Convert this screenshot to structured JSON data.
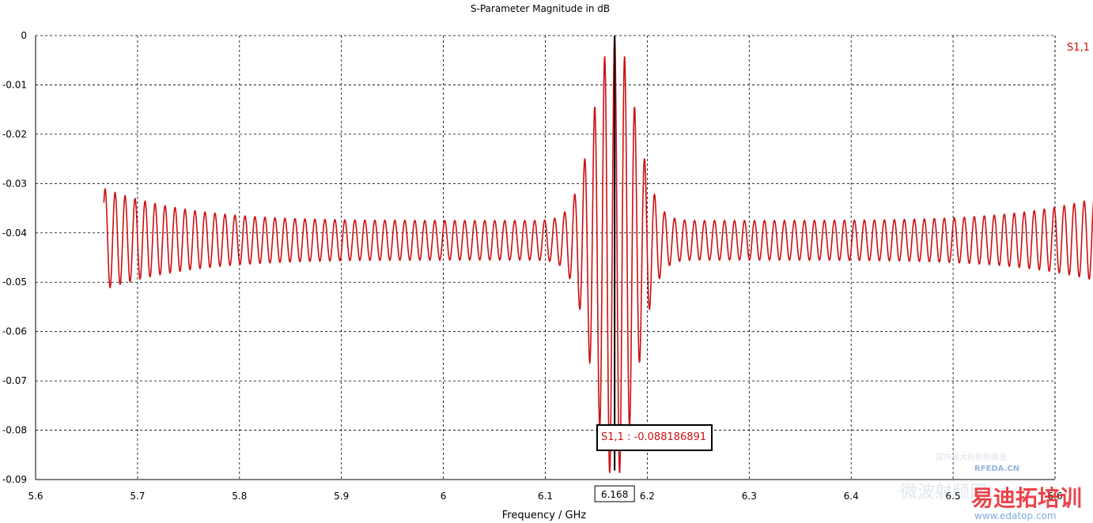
{
  "chart_data": {
    "type": "line",
    "title": "S-Parameter Magnitude in dB",
    "xlabel": "Frequency / GHz",
    "ylabel": "",
    "xlim": [
      5.6,
      6.6
    ],
    "ylim": [
      -0.09,
      0
    ],
    "x_ticks": [
      "5.6",
      "5.7",
      "5.8",
      "5.9",
      "6",
      "6.1",
      "6.2",
      "6.3",
      "6.4",
      "6.5",
      "6.6"
    ],
    "y_ticks": [
      "0",
      "-0.01",
      "-0.02",
      "-0.03",
      "-0.04",
      "-0.05",
      "-0.06",
      "-0.07",
      "-0.08",
      "-0.09"
    ],
    "grid": true,
    "legend_position": "top-right",
    "series": [
      {
        "name": "S1,1",
        "color": "#cc1111",
        "x_start": 5.667,
        "x_end": 6.668,
        "ripple_period": 0.0098,
        "peak_center_x": 6.168,
        "baseline_center_min_y": -0.0375,
        "baseline_center_max_y": -0.0455,
        "baseline_edge_min_y": -0.031,
        "baseline_edge_max_y": -0.0515,
        "center_min_y": 0.0,
        "center_max_y": -0.09
      }
    ],
    "marker": {
      "x": 6.168,
      "x_label": "6.168",
      "label": "S1,1 : -0.088186891",
      "value": -0.088186891
    }
  },
  "watermarks": {
    "site": "RFEDA.CN",
    "brand": "易迪拓培训",
    "url": "www.edatop.com",
    "cn_small": "国内最大的射频微波",
    "cn_large": "微波射频网"
  }
}
